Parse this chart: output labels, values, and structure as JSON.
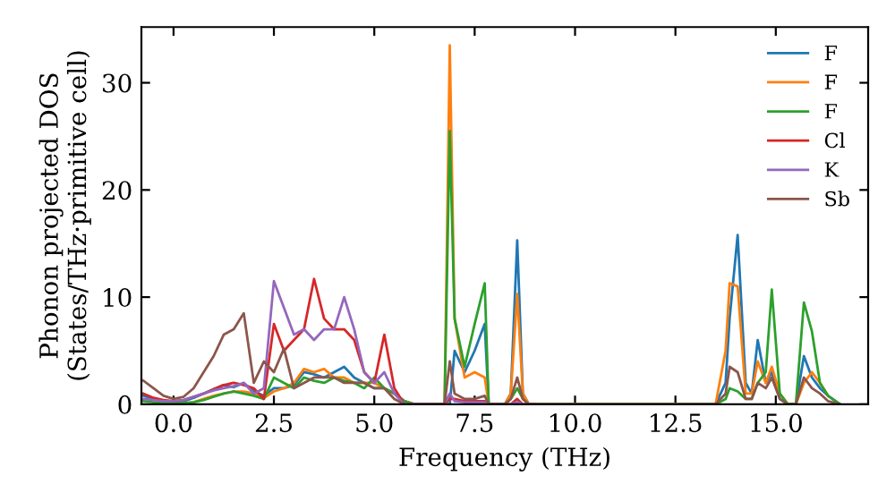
{
  "chart_data": {
    "type": "line",
    "xlabel": "Frequency (THz)",
    "ylabel": "Phonon projected DOS\n(States/THz·primitive cell)",
    "x": [
      -0.75,
      -0.5,
      -0.25,
      0,
      0.25,
      0.5,
      0.75,
      1,
      1.25,
      1.5,
      1.75,
      2,
      2.25,
      2.5,
      2.75,
      3,
      3.25,
      3.5,
      3.75,
      4,
      4.25,
      4.5,
      4.75,
      5,
      5.25,
      5.5,
      5.75,
      6,
      6.25,
      6.5,
      6.75,
      6.88,
      7.0,
      7.25,
      7.5,
      7.75,
      7.85,
      8.0,
      8.25,
      8.4,
      8.56,
      8.7,
      8.85,
      9.0,
      13.5,
      13.75,
      13.85,
      14.05,
      14.25,
      14.4,
      14.55,
      14.75,
      14.9,
      15.1,
      15.3,
      15.5,
      15.7,
      15.9,
      16.1,
      16.3,
      16.6
    ],
    "series": [
      {
        "name": "F",
        "color": "#1f77b4",
        "values": [
          0.8,
          0.5,
          0.3,
          0.2,
          0.3,
          0.6,
          1.0,
          1.4,
          1.8,
          1.6,
          2.0,
          1.2,
          0.8,
          1.5,
          1.5,
          1.8,
          3.0,
          2.8,
          2.5,
          3.0,
          3.5,
          2.5,
          2.0,
          1.5,
          1.5,
          1.0,
          0.3,
          0,
          0,
          0,
          0,
          0,
          5,
          3,
          5,
          7.5,
          0,
          0,
          0,
          1,
          15.3,
          1,
          0,
          0,
          0,
          2,
          8,
          15.8,
          2,
          1,
          6,
          2,
          3,
          0.5,
          0,
          0,
          4.5,
          2.5,
          1.5,
          0.8,
          0
        ]
      },
      {
        "name": "F",
        "color": "#ff7f0e",
        "values": [
          null,
          null,
          null,
          null,
          0.1,
          0.2,
          0.5,
          0.8,
          1.0,
          1.2,
          1.2,
          1.0,
          0.6,
          1.2,
          1.5,
          2.0,
          3.3,
          3.0,
          3.3,
          2.5,
          2.5,
          2.0,
          2.0,
          2.0,
          1.5,
          1.0,
          0.3,
          0,
          0,
          0,
          0,
          33.5,
          8,
          2.5,
          3,
          2.5,
          0,
          0,
          0,
          1,
          10.3,
          1,
          0,
          0,
          0,
          5,
          11.3,
          11,
          1,
          1,
          4,
          2,
          3.5,
          1,
          0,
          0,
          2,
          3,
          2,
          0.8,
          null
        ]
      },
      {
        "name": "F",
        "color": "#2ca02c",
        "values": [
          0.3,
          0.2,
          0.1,
          0.1,
          0.1,
          0.2,
          0.4,
          0.7,
          1.0,
          1.2,
          1.0,
          0.8,
          0.5,
          2.5,
          2.0,
          1.5,
          2.5,
          2.2,
          2.0,
          2.5,
          2.2,
          2.0,
          1.5,
          2.5,
          1.5,
          1.0,
          0.3,
          0,
          0,
          0,
          0,
          25.5,
          8,
          3.5,
          7.5,
          11.3,
          0,
          0,
          0,
          0.5,
          1.5,
          0.5,
          0,
          0,
          0,
          0.5,
          1.5,
          1.2,
          0.5,
          0.5,
          2,
          3,
          10.7,
          1,
          0,
          0,
          9.5,
          6.8,
          2,
          0.8,
          0
        ]
      },
      {
        "name": "Cl",
        "color": "#d62728",
        "values": [
          1.0,
          0.6,
          0.4,
          0.3,
          0.4,
          0.7,
          1.0,
          1.4,
          1.8,
          2.0,
          1.8,
          1.5,
          0.5,
          7.5,
          5,
          6.0,
          7,
          11.7,
          8,
          7,
          7,
          6,
          3,
          2,
          6.5,
          1.5,
          0,
          0,
          0,
          0,
          0,
          0.5,
          0.5,
          0.3,
          0.3,
          0.3,
          0,
          0,
          0,
          0,
          0.5,
          0,
          0,
          0,
          null,
          null,
          null,
          null,
          null,
          null,
          null,
          null,
          null,
          null,
          null,
          null,
          null,
          null,
          null,
          null,
          null
        ]
      },
      {
        "name": "K",
        "color": "#9467bd",
        "values": [
          0.5,
          0.4,
          0.3,
          0.3,
          0.4,
          0.7,
          1.0,
          1.3,
          1.5,
          1.7,
          2.0,
          1.0,
          1.5,
          11.5,
          9,
          6.5,
          7,
          6,
          7,
          7,
          10,
          7,
          3,
          2,
          3,
          1,
          0,
          0,
          0,
          0,
          0,
          1,
          0.3,
          0.2,
          0.2,
          0.2,
          0,
          0,
          0,
          0,
          0.2,
          0,
          0,
          null,
          null,
          null,
          null,
          null,
          null,
          null,
          null,
          null,
          null,
          null,
          null,
          null,
          null,
          null,
          null,
          null,
          null
        ]
      },
      {
        "name": "Sb",
        "color": "#8c564b",
        "values": [
          2.2,
          1.5,
          0.8,
          0.5,
          0.7,
          1.5,
          3,
          4.5,
          6.5,
          7,
          8.5,
          2,
          4,
          3,
          5.2,
          1.5,
          2,
          2.5,
          2.5,
          2.5,
          2,
          2,
          2,
          1.5,
          1.5,
          0.5,
          0,
          0,
          0,
          0,
          0,
          4,
          1,
          0.5,
          0.5,
          0.8,
          0,
          0,
          0,
          0.5,
          2.5,
          0.5,
          0,
          0,
          0,
          1,
          3.5,
          3,
          0.5,
          0.5,
          2,
          1.5,
          2.5,
          0.5,
          0,
          0,
          2.5,
          1.5,
          1,
          0.3,
          0
        ]
      }
    ],
    "xlim": [
      -0.8,
      17.3
    ],
    "ylim": [
      0,
      35.2
    ],
    "xticks": [
      {
        "value": 0,
        "label": "0.0"
      },
      {
        "value": 2.5,
        "label": "2.5"
      },
      {
        "value": 5,
        "label": "5.0"
      },
      {
        "value": 7.5,
        "label": "7.5"
      },
      {
        "value": 10,
        "label": "10.0"
      },
      {
        "value": 12.5,
        "label": "12.5"
      },
      {
        "value": 15,
        "label": "15.0"
      }
    ],
    "yticks": [
      0,
      10,
      20,
      30
    ],
    "legend": "top right",
    "grid": false,
    "marker": "none",
    "line_style": "solid"
  }
}
